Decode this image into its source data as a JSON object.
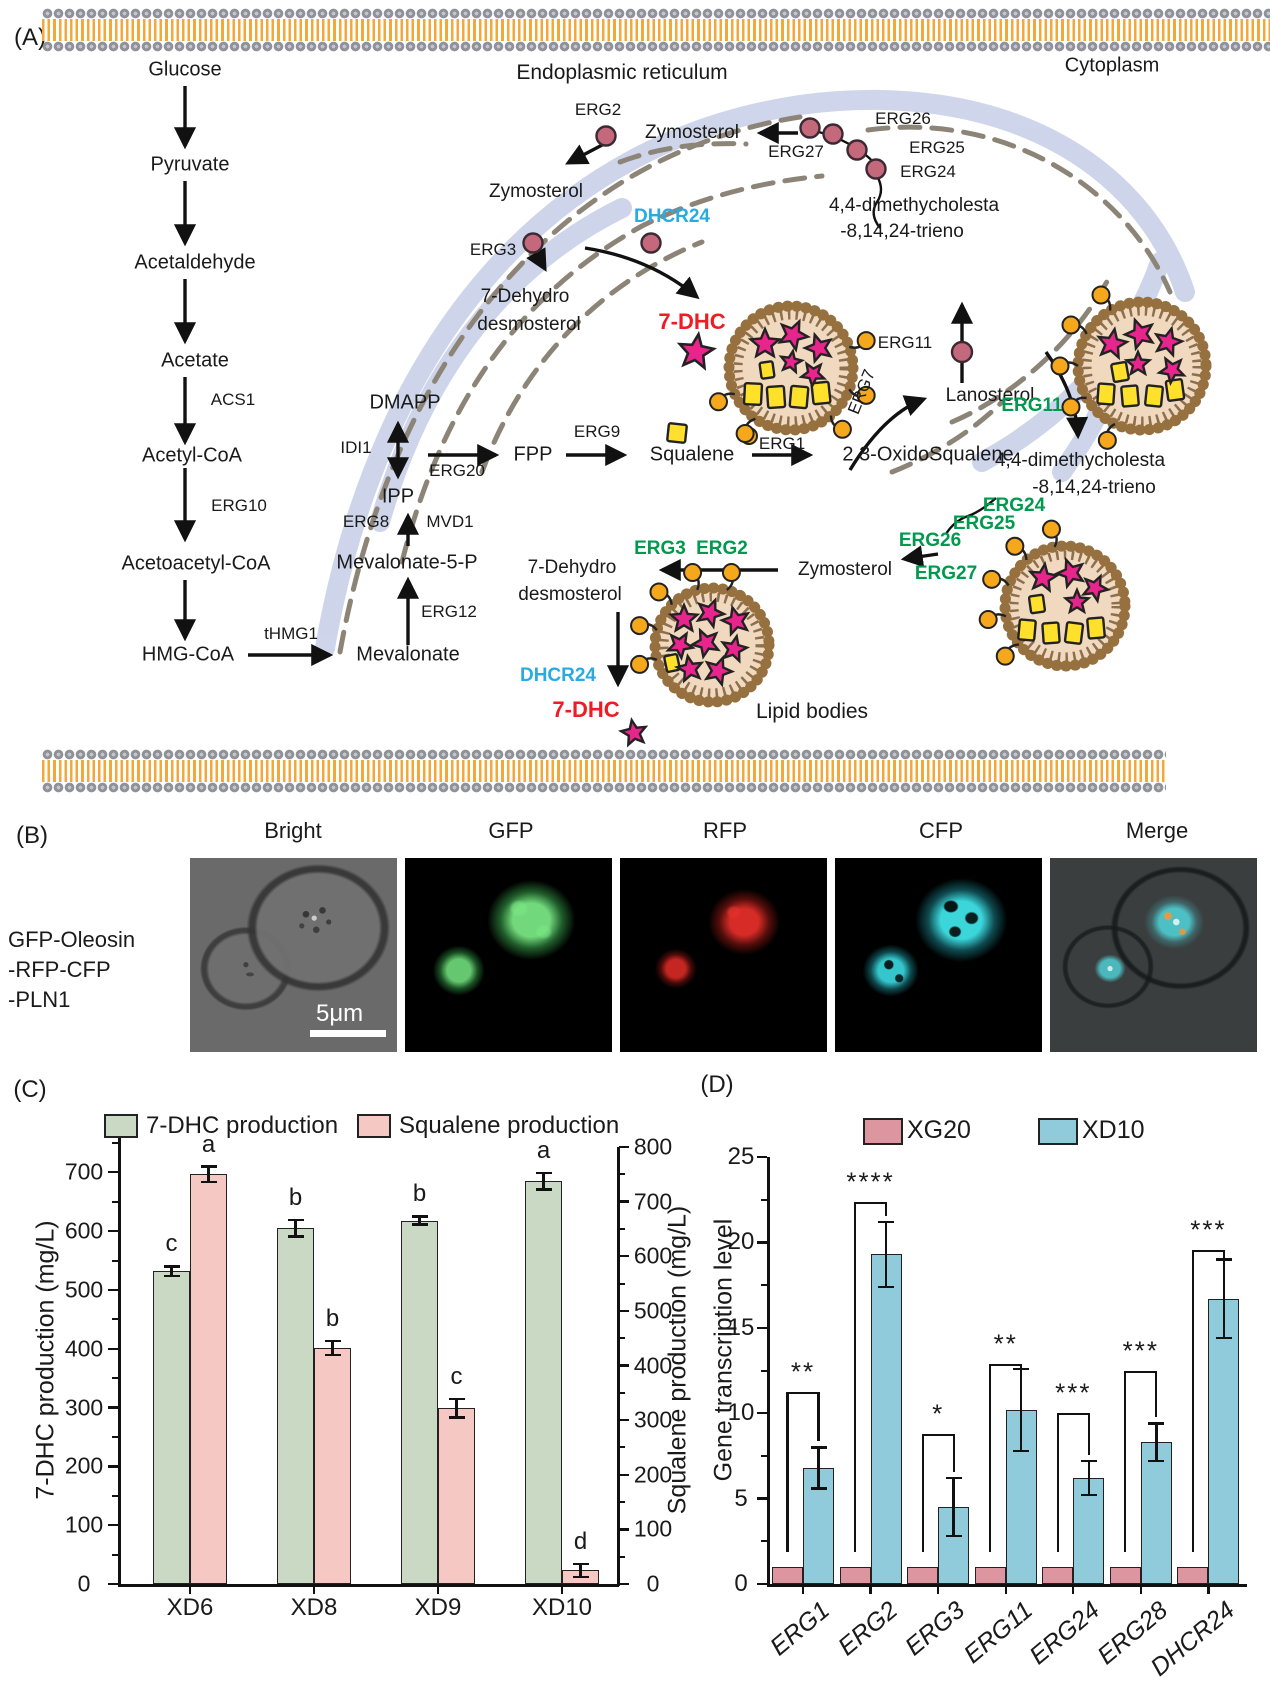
{
  "colors": {
    "green_bar": "#c9d9c3",
    "pink_bar": "#f5c8c3",
    "blue_bar": "#90cbdc",
    "legend_pink": "#dd96a0",
    "accent_green": "#009a4e",
    "accent_cyan": "#29abe2",
    "accent_red": "#ee1d23",
    "membrane_orange": "#f2a83a",
    "er_fill": "#ccd3ea",
    "er_dash": "#8d8478",
    "lipid_fill": "#f0d9bf",
    "lipid_bead": "#96713f",
    "star_pink": "#e8258d",
    "square_yellow": "#ffe12b",
    "dot_orange": "#f5a81c",
    "enzyme_circle": "#c4687c"
  },
  "panelA": {
    "label": "(A)",
    "cytoplasm": "Cytoplasm",
    "labels": {
      "glucose": "Glucose",
      "pyruvate": "Pyruvate",
      "acetaldehyde": "Acetaldehyde",
      "acetate": "Acetate",
      "acs1": "ACS1",
      "acetyl_coa": "Acetyl-CoA",
      "erg10": "ERG10",
      "acetoacetyl_coa": "Acetoacetyl-CoA",
      "hmg_coa": "HMG-CoA",
      "thmg1": "tHMG1",
      "mevalonate": "Mevalonate",
      "erg12": "ERG12",
      "mevalonate5p": "Mevalonate-5-P",
      "erg8": "ERG8",
      "mvd1": "MVD1",
      "ipp": "IPP",
      "idi1": "IDI1",
      "erg20": "ERG20",
      "dmapp": "DMAPP",
      "fpp": "FPP",
      "erg9": "ERG9",
      "squalene": "Squalene",
      "erg1": "ERG1",
      "oxidosqualene": "2,3-OxidoSqualene",
      "er_title": "Endoplasmic reticulum",
      "erg2_top": "ERG2",
      "zymosterol1": "Zymosterol",
      "zymosterol2": "Zymosterol",
      "zymosterol3": "Zymosterol",
      "erg3_top": "ERG3",
      "erg26_top": "ERG26",
      "erg25_top": "ERG25",
      "erg27_top": "ERG27",
      "erg24_top": "ERG24",
      "dimeth1a": "4,4-dimethycholesta",
      "dimeth1b": "-8,14,24-trieno",
      "erg11_top": "ERG11",
      "lanosterol": "Lanosterol",
      "dhcr24_1": "DHCR24",
      "dhc1": "7-DHC",
      "dehydro1a": "7-Dehydro",
      "dehydro1b": "desmosterol",
      "erg7": "ERG7",
      "erg11_g": "ERG11",
      "dimeth2a": "4,4-dimethycholesta",
      "dimeth2b": "-8,14,24-trieno",
      "erg24_g": "ERG24",
      "erg25_g": "ERG25",
      "erg26_g": "ERG26",
      "erg27_g": "ERG27",
      "erg3_g": "ERG3",
      "erg2_g": "ERG2",
      "dehydro2a": "7-Dehydro",
      "dehydro2b": "desmosterol",
      "dhcr24_2": "DHCR24",
      "dhc2": "7-DHC",
      "lipid_bodies": "Lipid bodies"
    }
  },
  "panelB": {
    "label": "(B)",
    "columns": [
      "Bright",
      "GFP",
      "RFP",
      "CFP",
      "Merge"
    ],
    "row_label": [
      "GFP-Oleosin",
      "-RFP-CFP",
      "-PLN1"
    ],
    "scale_bar": "5μm"
  },
  "panelC": {
    "label": "(C)"
  },
  "panelD": {
    "label": "(D)"
  },
  "chart_data": [
    {
      "id": "C",
      "type": "bar",
      "categories": [
        "XD6",
        "XD8",
        "XD9",
        "XD10"
      ],
      "series": [
        {
          "name": "7-DHC production",
          "axis": "left",
          "color": "#c9d9c3",
          "values": [
            532,
            605,
            618,
            685
          ],
          "errors": [
            8,
            14,
            7,
            14
          ],
          "letters": [
            "c",
            "b",
            "b",
            "a"
          ]
        },
        {
          "name": "Squalene production",
          "axis": "right",
          "color": "#f5c8c3",
          "values": [
            750,
            432,
            322,
            25
          ],
          "errors": [
            14,
            13,
            17,
            12
          ],
          "letters": [
            "a",
            "b",
            "c",
            "d"
          ]
        }
      ],
      "left_axis": {
        "label": "7-DHC production (mg/L)",
        "ticks": [
          0,
          100,
          200,
          300,
          400,
          500,
          600,
          700
        ],
        "max": 760
      },
      "right_axis": {
        "label": "Squalene production (mg/L)",
        "ticks": [
          0,
          100,
          200,
          300,
          400,
          500,
          600,
          700,
          800
        ],
        "max": 800
      },
      "legend_position": "top",
      "grid": false
    },
    {
      "id": "D",
      "type": "bar",
      "categories": [
        "ERG1",
        "ERG2",
        "ERG3",
        "ERG11",
        "ERG24",
        "ERG28",
        "DHCR24"
      ],
      "series": [
        {
          "name": "XG20",
          "color": "#dd96a0",
          "values": [
            1,
            1,
            1,
            1,
            1,
            1,
            1
          ]
        },
        {
          "name": "XD10",
          "color": "#90cbdc",
          "values": [
            6.8,
            19.3,
            4.5,
            10.2,
            6.2,
            8.3,
            16.7
          ],
          "errors": [
            1.2,
            1.9,
            1.7,
            2.4,
            1.0,
            1.1,
            2.3
          ],
          "significance": [
            "**",
            "****",
            "*",
            "**",
            "***",
            "***",
            "***"
          ]
        }
      ],
      "left_axis": {
        "label": "Gene transcription level",
        "ticks": [
          0,
          5,
          10,
          15,
          20,
          25
        ],
        "max": 25
      },
      "legend_position": "top",
      "grid": false
    }
  ]
}
